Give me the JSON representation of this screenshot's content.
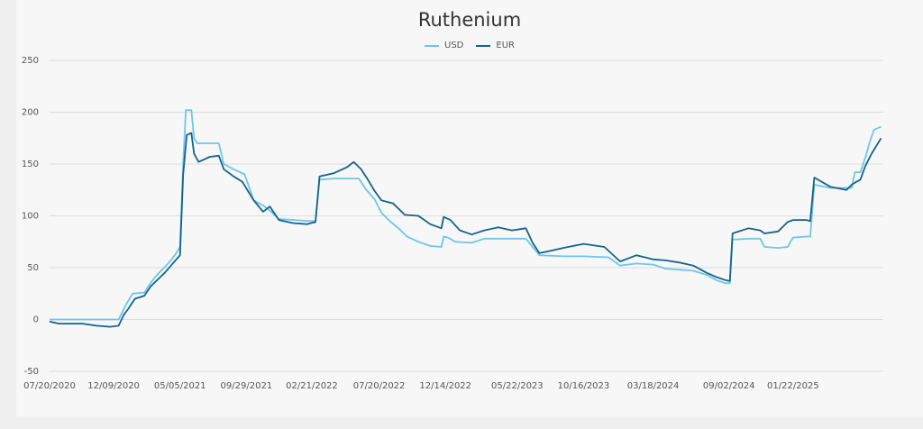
{
  "chart_data": {
    "type": "line",
    "title": "Ruthenium",
    "xlabel": "",
    "ylabel": "",
    "ylim": [
      -50,
      250
    ],
    "yticks": [
      -50,
      0,
      50,
      100,
      150,
      200,
      250
    ],
    "xticks": [
      "07/20/2020",
      "12/09/2020",
      "05/05/2021",
      "09/29/2021",
      "02/21/2022",
      "07/20/2022",
      "12/14/2022",
      "05/22/2023",
      "10/16/2023",
      "03/18/2024",
      "09/02/2024",
      "01/22/2025"
    ],
    "grid": "horizontal",
    "legend_position": "top",
    "x_range": [
      "2020-07-20",
      "2025-08-10"
    ],
    "series": [
      {
        "name": "USD",
        "color": "#6ec6ea",
        "points": [
          [
            "2020-07-20",
            0
          ],
          [
            "2020-12-20",
            0
          ],
          [
            "2021-01-05",
            14
          ],
          [
            "2021-01-20",
            25
          ],
          [
            "2021-02-15",
            26
          ],
          [
            "2021-02-28",
            35
          ],
          [
            "2021-03-15",
            43
          ],
          [
            "2021-03-31",
            50
          ],
          [
            "2021-04-15",
            57
          ],
          [
            "2021-04-25",
            63
          ],
          [
            "2021-05-05",
            70
          ],
          [
            "2021-05-12",
            150
          ],
          [
            "2021-05-18",
            202
          ],
          [
            "2021-05-30",
            202
          ],
          [
            "2021-06-05",
            175
          ],
          [
            "2021-06-12",
            170
          ],
          [
            "2021-07-10",
            170
          ],
          [
            "2021-07-30",
            170
          ],
          [
            "2021-08-10",
            150
          ],
          [
            "2021-09-01",
            145
          ],
          [
            "2021-09-25",
            140
          ],
          [
            "2021-10-15",
            115
          ],
          [
            "2021-11-05",
            110
          ],
          [
            "2021-11-20",
            105
          ],
          [
            "2021-12-10",
            97
          ],
          [
            "2022-01-15",
            96
          ],
          [
            "2022-02-15",
            95
          ],
          [
            "2022-03-01",
            95
          ],
          [
            "2022-03-10",
            135
          ],
          [
            "2022-04-10",
            136
          ],
          [
            "2022-05-15",
            136
          ],
          [
            "2022-06-05",
            136
          ],
          [
            "2022-06-20",
            126
          ],
          [
            "2022-07-10",
            116
          ],
          [
            "2022-07-25",
            103
          ],
          [
            "2022-08-10",
            96
          ],
          [
            "2022-09-01",
            88
          ],
          [
            "2022-09-20",
            80
          ],
          [
            "2022-10-15",
            75
          ],
          [
            "2022-11-10",
            71
          ],
          [
            "2022-12-05",
            70
          ],
          [
            "2022-12-10",
            80
          ],
          [
            "2022-12-20",
            79
          ],
          [
            "2023-01-05",
            75
          ],
          [
            "2023-02-10",
            74
          ],
          [
            "2023-03-10",
            78
          ],
          [
            "2023-04-15",
            78
          ],
          [
            "2023-05-15",
            78
          ],
          [
            "2023-06-10",
            78
          ],
          [
            "2023-06-25",
            70
          ],
          [
            "2023-07-10",
            62
          ],
          [
            "2023-09-01",
            61
          ],
          [
            "2023-10-16",
            61
          ],
          [
            "2023-12-10",
            60
          ],
          [
            "2024-01-05",
            52
          ],
          [
            "2024-02-10",
            54
          ],
          [
            "2024-03-18",
            53
          ],
          [
            "2024-04-15",
            49
          ],
          [
            "2024-06-15",
            47
          ],
          [
            "2024-07-15",
            43
          ],
          [
            "2024-08-05",
            38
          ],
          [
            "2024-08-25",
            35
          ],
          [
            "2024-09-04",
            35
          ],
          [
            "2024-09-10",
            77
          ],
          [
            "2024-10-15",
            78
          ],
          [
            "2024-11-10",
            78
          ],
          [
            "2024-11-20",
            70
          ],
          [
            "2024-12-20",
            69
          ],
          [
            "2025-01-10",
            70
          ],
          [
            "2025-01-22",
            79
          ],
          [
            "2025-02-20",
            80
          ],
          [
            "2025-03-01",
            80
          ],
          [
            "2025-03-10",
            130
          ],
          [
            "2025-04-15",
            127
          ],
          [
            "2025-05-20",
            127
          ],
          [
            "2025-06-01",
            127
          ],
          [
            "2025-06-08",
            142
          ],
          [
            "2025-06-20",
            142
          ],
          [
            "2025-07-01",
            156
          ],
          [
            "2025-07-10",
            170
          ],
          [
            "2025-07-20",
            183
          ],
          [
            "2025-08-05",
            186
          ]
        ]
      },
      {
        "name": "EUR",
        "color": "#16638a",
        "points": [
          [
            "2020-07-20",
            -2
          ],
          [
            "2020-08-10",
            -4
          ],
          [
            "2020-09-01",
            -4
          ],
          [
            "2020-10-01",
            -4
          ],
          [
            "2020-11-01",
            -6
          ],
          [
            "2020-12-01",
            -7
          ],
          [
            "2020-12-20",
            -6
          ],
          [
            "2021-01-01",
            5
          ],
          [
            "2021-01-10",
            10
          ],
          [
            "2021-01-25",
            20
          ],
          [
            "2021-02-15",
            23
          ],
          [
            "2021-03-01",
            32
          ],
          [
            "2021-03-20",
            40
          ],
          [
            "2021-04-01",
            45
          ],
          [
            "2021-04-15",
            52
          ],
          [
            "2021-04-25",
            57
          ],
          [
            "2021-05-05",
            62
          ],
          [
            "2021-05-12",
            140
          ],
          [
            "2021-05-20",
            178
          ],
          [
            "2021-05-30",
            180
          ],
          [
            "2021-06-05",
            160
          ],
          [
            "2021-06-15",
            152
          ],
          [
            "2021-07-10",
            157
          ],
          [
            "2021-07-30",
            158
          ],
          [
            "2021-08-10",
            145
          ],
          [
            "2021-09-01",
            138
          ],
          [
            "2021-09-20",
            133
          ],
          [
            "2021-10-15",
            115
          ],
          [
            "2021-11-05",
            104
          ],
          [
            "2021-11-20",
            109
          ],
          [
            "2021-12-10",
            96
          ],
          [
            "2022-01-10",
            93
          ],
          [
            "2022-02-10",
            92
          ],
          [
            "2022-03-01",
            94
          ],
          [
            "2022-03-10",
            138
          ],
          [
            "2022-04-10",
            141
          ],
          [
            "2022-05-10",
            147
          ],
          [
            "2022-05-25",
            152
          ],
          [
            "2022-06-10",
            145
          ],
          [
            "2022-06-25",
            135
          ],
          [
            "2022-07-10",
            124
          ],
          [
            "2022-07-25",
            115
          ],
          [
            "2022-08-20",
            112
          ],
          [
            "2022-09-15",
            101
          ],
          [
            "2022-10-15",
            100
          ],
          [
            "2022-11-10",
            92
          ],
          [
            "2022-12-05",
            88
          ],
          [
            "2022-12-10",
            99
          ],
          [
            "2022-12-25",
            96
          ],
          [
            "2023-01-15",
            86
          ],
          [
            "2023-02-10",
            82
          ],
          [
            "2023-03-10",
            86
          ],
          [
            "2023-04-10",
            89
          ],
          [
            "2023-05-10",
            86
          ],
          [
            "2023-06-10",
            88
          ],
          [
            "2023-06-25",
            74
          ],
          [
            "2023-07-10",
            64
          ],
          [
            "2023-08-01",
            66
          ],
          [
            "2023-09-01",
            69
          ],
          [
            "2023-10-16",
            73
          ],
          [
            "2023-12-01",
            70
          ],
          [
            "2024-01-05",
            56
          ],
          [
            "2024-02-10",
            62
          ],
          [
            "2024-03-18",
            58
          ],
          [
            "2024-04-15",
            57
          ],
          [
            "2024-05-15",
            55
          ],
          [
            "2024-06-15",
            52
          ],
          [
            "2024-07-15",
            45
          ],
          [
            "2024-08-05",
            41
          ],
          [
            "2024-08-25",
            38
          ],
          [
            "2024-09-04",
            37
          ],
          [
            "2024-09-10",
            83
          ],
          [
            "2024-10-15",
            88
          ],
          [
            "2024-11-10",
            86
          ],
          [
            "2024-11-20",
            83
          ],
          [
            "2024-12-20",
            85
          ],
          [
            "2025-01-10",
            94
          ],
          [
            "2025-01-22",
            96
          ],
          [
            "2025-02-20",
            96
          ],
          [
            "2025-03-01",
            95
          ],
          [
            "2025-03-10",
            137
          ],
          [
            "2025-04-15",
            128
          ],
          [
            "2025-05-20",
            125
          ],
          [
            "2025-06-01",
            130
          ],
          [
            "2025-06-08",
            132
          ],
          [
            "2025-06-20",
            135
          ],
          [
            "2025-07-01",
            148
          ],
          [
            "2025-07-15",
            160
          ],
          [
            "2025-08-05",
            175
          ]
        ]
      }
    ]
  }
}
